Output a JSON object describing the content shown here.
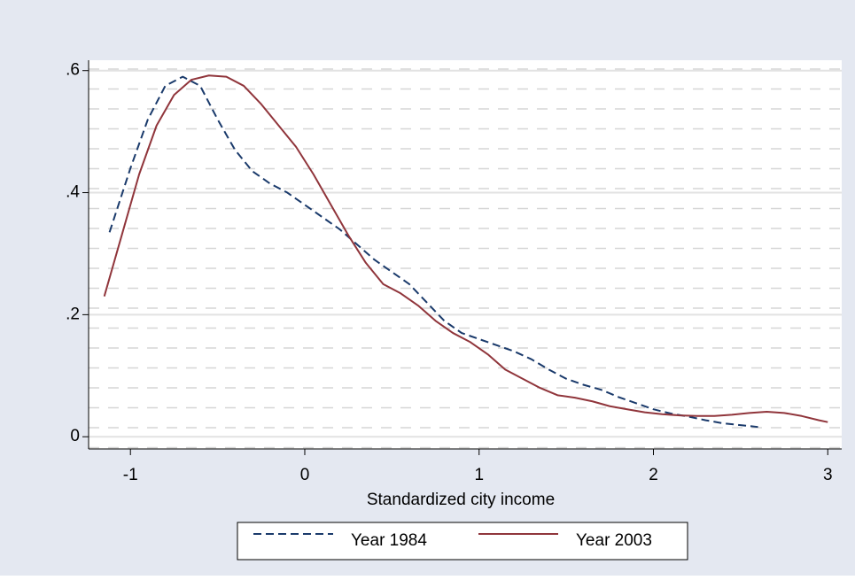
{
  "chart_data": {
    "type": "line",
    "x_label": "Standardized city income",
    "xlim": [
      -1.24,
      3.08
    ],
    "ylim": [
      -0.02,
      0.617
    ],
    "xticks": [
      -1,
      0,
      1,
      2,
      3
    ],
    "yticks": [
      0,
      {
        "value": 0.2,
        "label": ".2"
      },
      {
        "value": 0.4,
        "label": ".4"
      },
      {
        "value": 0.6,
        "label": ".6"
      }
    ],
    "grid": true,
    "legend": "bottom",
    "series": [
      {
        "name": "Year 1984",
        "color": "#1a3a6b",
        "dash": true,
        "x": [
          -1.12,
          -1.0,
          -0.9,
          -0.8,
          -0.7,
          -0.6,
          -0.5,
          -0.4,
          -0.3,
          -0.2,
          -0.1,
          0,
          0.1,
          0.2,
          0.3,
          0.4,
          0.5,
          0.6,
          0.7,
          0.8,
          0.9,
          1.0,
          1.1,
          1.2,
          1.3,
          1.4,
          1.5,
          1.6,
          1.7,
          1.8,
          1.9,
          2.0,
          2.1,
          2.2,
          2.3,
          2.4,
          2.5,
          2.6
        ],
        "values": [
          0.335,
          0.44,
          0.52,
          0.575,
          0.59,
          0.575,
          0.52,
          0.47,
          0.435,
          0.415,
          0.4,
          0.38,
          0.36,
          0.34,
          0.315,
          0.29,
          0.27,
          0.25,
          0.22,
          0.19,
          0.17,
          0.16,
          0.15,
          0.14,
          0.127,
          0.11,
          0.095,
          0.085,
          0.077,
          0.065,
          0.055,
          0.045,
          0.038,
          0.033,
          0.027,
          0.022,
          0.019,
          0.016
        ]
      },
      {
        "name": "Year 2003",
        "color": "#90353b",
        "dash": false,
        "x": [
          -1.15,
          -1.05,
          -0.95,
          -0.85,
          -0.75,
          -0.65,
          -0.55,
          -0.45,
          -0.35,
          -0.25,
          -0.15,
          -0.05,
          0.05,
          0.15,
          0.25,
          0.35,
          0.45,
          0.55,
          0.65,
          0.75,
          0.85,
          0.95,
          1.05,
          1.15,
          1.25,
          1.35,
          1.45,
          1.55,
          1.65,
          1.75,
          1.85,
          1.95,
          2.05,
          2.15,
          2.25,
          2.35,
          2.45,
          2.55,
          2.65,
          2.75,
          2.85,
          2.95,
          3.0
        ],
        "values": [
          0.23,
          0.33,
          0.43,
          0.51,
          0.56,
          0.585,
          0.592,
          0.59,
          0.575,
          0.545,
          0.51,
          0.475,
          0.43,
          0.38,
          0.33,
          0.285,
          0.25,
          0.235,
          0.215,
          0.19,
          0.17,
          0.155,
          0.135,
          0.11,
          0.095,
          0.08,
          0.068,
          0.064,
          0.058,
          0.05,
          0.045,
          0.04,
          0.037,
          0.035,
          0.034,
          0.034,
          0.036,
          0.039,
          0.041,
          0.039,
          0.034,
          0.027,
          0.024
        ]
      }
    ]
  }
}
